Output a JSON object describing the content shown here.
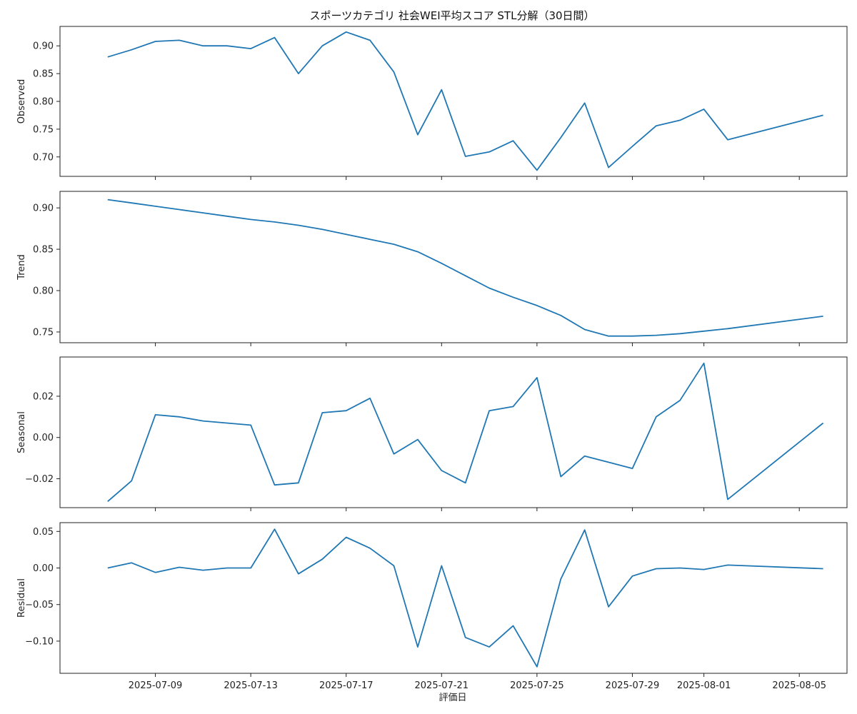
{
  "chart_data": {
    "type": "line",
    "title": "スポーツカテゴリ 社会WEI平均スコア STL分解（30日間）",
    "xlabel": "評価日",
    "x": [
      "2025-07-07",
      "2025-07-08",
      "2025-07-09",
      "2025-07-10",
      "2025-07-11",
      "2025-07-12",
      "2025-07-13",
      "2025-07-14",
      "2025-07-15",
      "2025-07-16",
      "2025-07-17",
      "2025-07-18",
      "2025-07-19",
      "2025-07-20",
      "2025-07-21",
      "2025-07-22",
      "2025-07-23",
      "2025-07-24",
      "2025-07-25",
      "2025-07-26",
      "2025-07-27",
      "2025-07-28",
      "2025-07-29",
      "2025-07-30",
      "2025-07-31",
      "2025-08-01",
      "2025-08-02",
      "2025-08-06"
    ],
    "x_ticks": [
      "2025-07-09",
      "2025-07-13",
      "2025-07-17",
      "2025-07-21",
      "2025-07-25",
      "2025-07-29",
      "2025-08-01",
      "2025-08-05"
    ],
    "xlim": [
      "2025-07-05",
      "2025-08-07"
    ],
    "panels": [
      {
        "ylabel": "Observed",
        "ylim": [
          0.665,
          0.935
        ],
        "yticks": [
          "0.70",
          "0.75",
          "0.80",
          "0.85",
          "0.90"
        ],
        "values": [
          0.88,
          0.893,
          0.908,
          0.91,
          0.9,
          0.9,
          0.895,
          0.915,
          0.85,
          0.9,
          0.925,
          0.91,
          0.853,
          0.74,
          0.821,
          0.701,
          0.709,
          0.729,
          0.676,
          0.735,
          0.797,
          0.681,
          0.719,
          0.756,
          0.766,
          0.786,
          0.731,
          0.775
        ]
      },
      {
        "ylabel": "Trend",
        "ylim": [
          0.737,
          0.92
        ],
        "yticks": [
          "0.75",
          "0.80",
          "0.85",
          "0.90"
        ],
        "values": [
          0.91,
          0.906,
          0.902,
          0.898,
          0.894,
          0.89,
          0.886,
          0.883,
          0.879,
          0.874,
          0.868,
          0.862,
          0.856,
          0.847,
          0.833,
          0.818,
          0.803,
          0.792,
          0.782,
          0.77,
          0.753,
          0.745,
          0.745,
          0.746,
          0.748,
          0.751,
          0.754,
          0.769
        ]
      },
      {
        "ylabel": "Seasonal",
        "ylim": [
          -0.034,
          0.039
        ],
        "yticks": [
          "−0.02",
          "0.00",
          "0.02"
        ],
        "values": [
          -0.031,
          -0.021,
          0.011,
          0.01,
          0.008,
          0.007,
          0.006,
          -0.023,
          -0.022,
          0.012,
          0.013,
          0.019,
          -0.008,
          -0.001,
          -0.016,
          -0.022,
          0.013,
          0.015,
          0.029,
          -0.019,
          -0.009,
          -0.012,
          -0.015,
          0.01,
          0.018,
          0.036,
          -0.03,
          0.007
        ]
      },
      {
        "ylabel": "Residual",
        "ylim": [
          -0.144,
          0.062
        ],
        "yticks": [
          "−0.10",
          "−0.05",
          "0.00",
          "0.05"
        ],
        "values": [
          0.0,
          0.007,
          -0.006,
          0.001,
          -0.003,
          0.0,
          0.0,
          0.053,
          -0.008,
          0.012,
          0.042,
          0.027,
          0.003,
          -0.108,
          0.003,
          -0.095,
          -0.108,
          -0.079,
          -0.135,
          -0.015,
          0.052,
          -0.053,
          -0.011,
          -0.001,
          0.0,
          -0.002,
          0.004,
          -0.001
        ]
      }
    ]
  }
}
